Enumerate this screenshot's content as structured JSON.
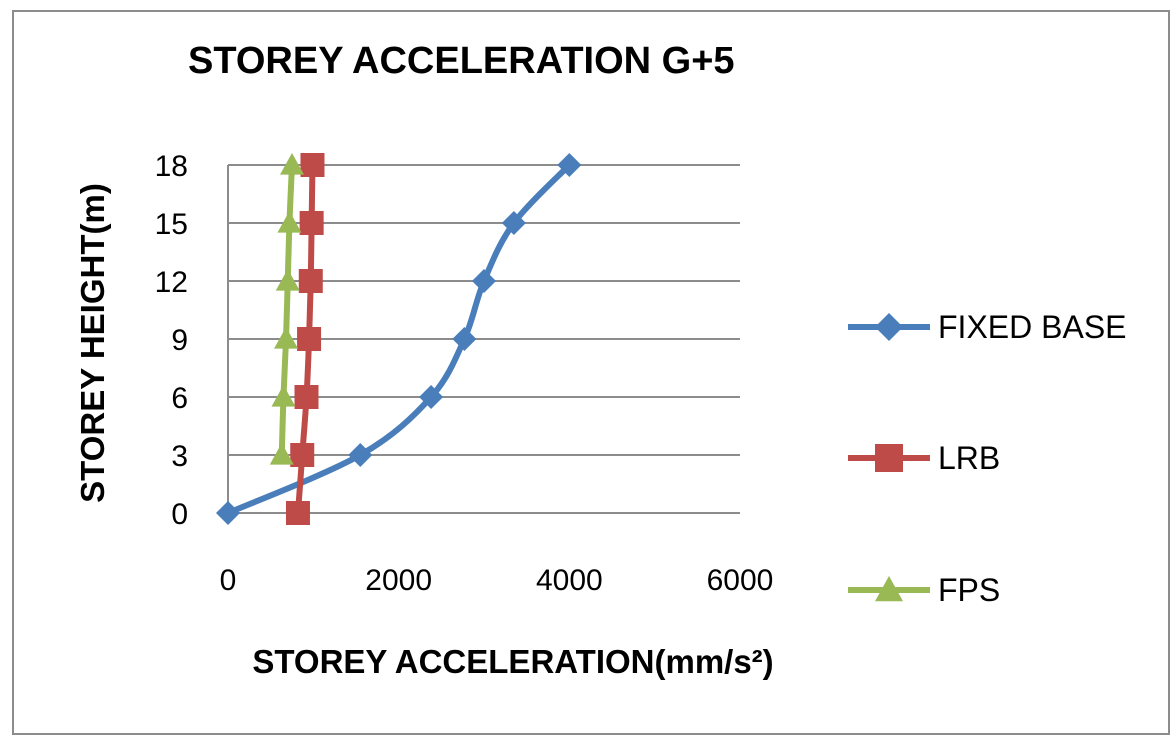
{
  "chart_data": {
    "type": "line",
    "title": "STOREY ACCELERATION  G+5",
    "xlabel": "STOREY ACCELERATION(mm/s²)",
    "ylabel": "STOREY HEIGHT(m)",
    "xlim": [
      0,
      6000
    ],
    "ylim": [
      0,
      18
    ],
    "xticks": [
      "0",
      "2000",
      "4000",
      "6000"
    ],
    "yticks": [
      "0",
      "3",
      "6",
      "9",
      "12",
      "15",
      "18"
    ],
    "grid": "horizontal",
    "legend_position": "right",
    "series": [
      {
        "name": "FIXED BASE",
        "color": "#4a7ebb",
        "marker": "diamond",
        "points": [
          [
            0,
            0
          ],
          [
            1550,
            3
          ],
          [
            2380,
            6
          ],
          [
            2770,
            9
          ],
          [
            3000,
            12
          ],
          [
            3350,
            15
          ],
          [
            4000,
            18
          ]
        ]
      },
      {
        "name": "LRB",
        "color": "#be4b48",
        "marker": "square",
        "points": [
          [
            820,
            0
          ],
          [
            870,
            3
          ],
          [
            920,
            6
          ],
          [
            950,
            9
          ],
          [
            970,
            12
          ],
          [
            980,
            15
          ],
          [
            990,
            18
          ]
        ]
      },
      {
        "name": "FPS",
        "color": "#98b954",
        "marker": "triangle",
        "points": [
          [
            630,
            3
          ],
          [
            650,
            6
          ],
          [
            680,
            9
          ],
          [
            700,
            12
          ],
          [
            720,
            15
          ],
          [
            750,
            18
          ]
        ]
      }
    ]
  }
}
